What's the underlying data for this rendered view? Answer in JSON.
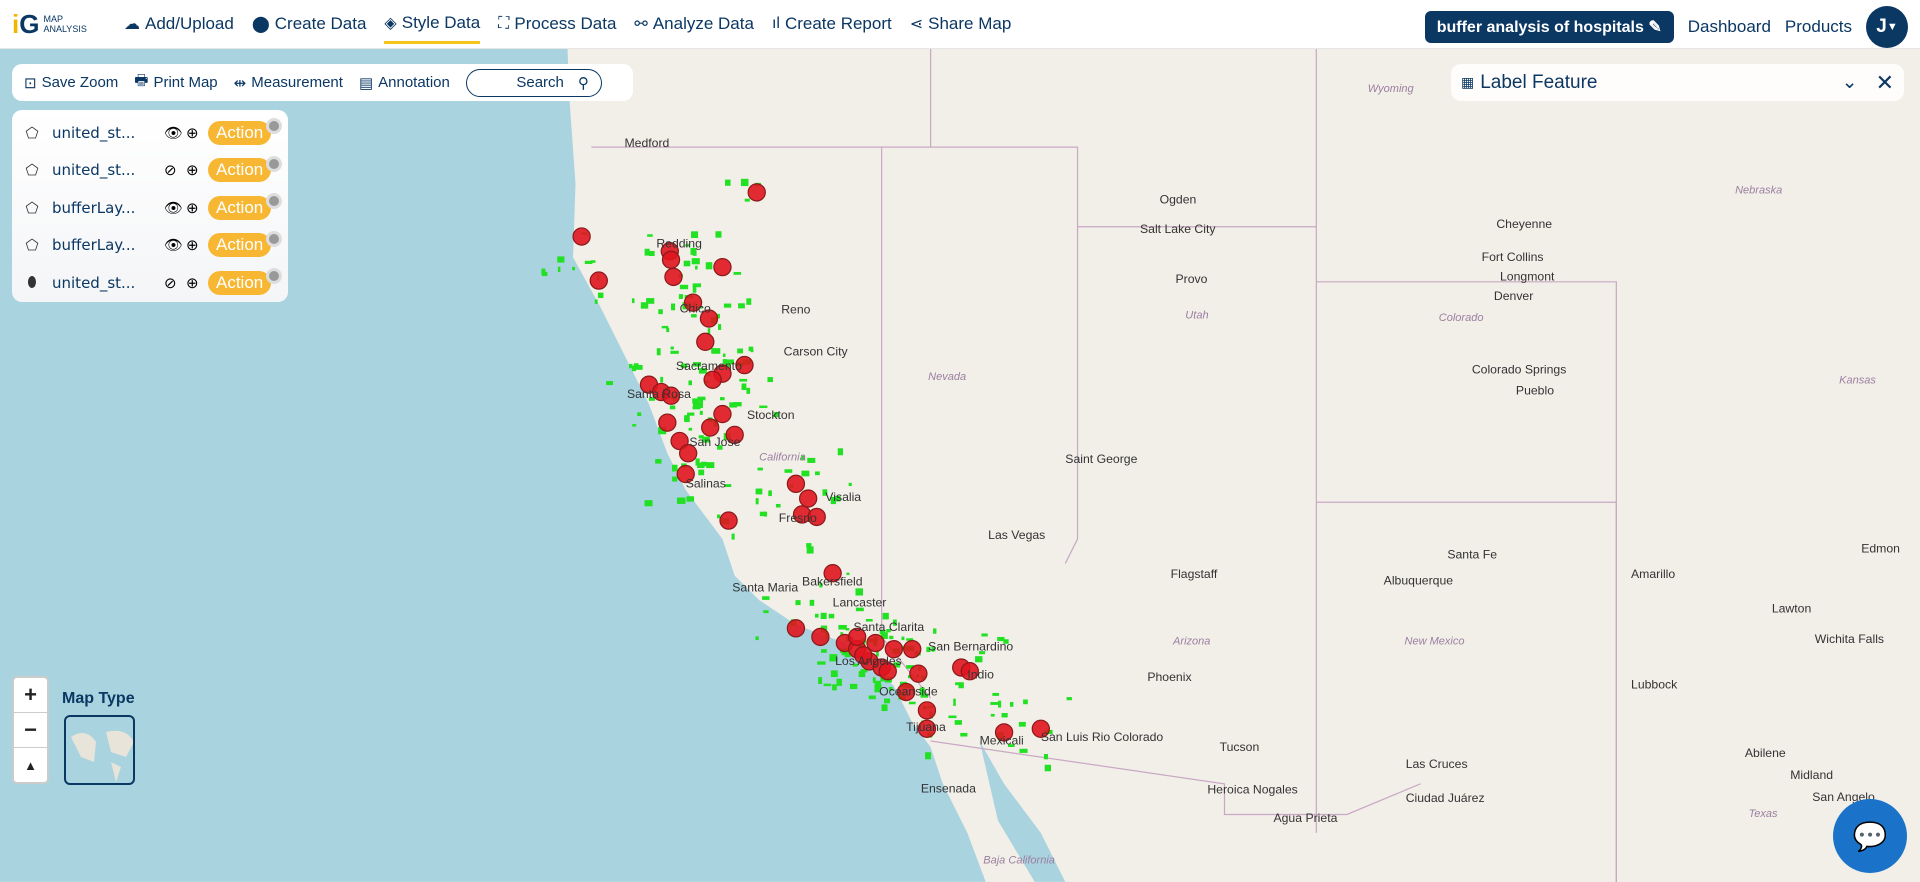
{
  "header": {
    "logo_mark": "iG",
    "logo_text": [
      "MAP",
      "ANALYSIS"
    ],
    "nav": [
      {
        "label": "Add/Upload",
        "icon": "cloud-upload-icon"
      },
      {
        "label": "Create Data",
        "icon": "map-pin-icon"
      },
      {
        "label": "Style Data",
        "icon": "paint-bucket-icon",
        "active": true
      },
      {
        "label": "Process Data",
        "icon": "process-icon"
      },
      {
        "label": "Analyze Data",
        "icon": "analyze-icon"
      },
      {
        "label": "Create Report",
        "icon": "bar-chart-icon"
      },
      {
        "label": "Share Map",
        "icon": "share-icon"
      }
    ],
    "project": "buffer analysis of hospitals",
    "dashboard": "Dashboard",
    "products": "Products",
    "avatar": "J"
  },
  "toolbar": {
    "save_zoom": "Save Zoom",
    "print_map": "Print Map",
    "measurement": "Measurement",
    "annotation": "Annotation",
    "search": "Search"
  },
  "layers": [
    {
      "name": "united_st...",
      "type": "polygon",
      "visible": true,
      "action": "Action"
    },
    {
      "name": "united_st...",
      "type": "polygon",
      "visible": false,
      "action": "Action"
    },
    {
      "name": "bufferLay...",
      "type": "polygon",
      "visible": true,
      "action": "Action"
    },
    {
      "name": "bufferLay...",
      "type": "polygon",
      "visible": true,
      "action": "Action"
    },
    {
      "name": "united_st...",
      "type": "point",
      "visible": false,
      "action": "Action"
    }
  ],
  "label_feature": {
    "title": "Label Feature"
  },
  "map_type": {
    "label": "Map Type"
  },
  "zoom": {
    "in": "+",
    "out": "−",
    "reset": "▲"
  },
  "colors": {
    "brand": "#0b3763",
    "accent": "#f5c518",
    "action": "#f7b733",
    "buffer": "#e0141e",
    "feature": "#22e022",
    "ocean": "#a9d3df",
    "land": "#f2efe9"
  },
  "places": [
    "Medford",
    "Redding",
    "Chico",
    "Reno",
    "Carson City",
    "Sacramento",
    "Santa Rosa",
    "Stockton",
    "San Jose",
    "Salinas",
    "California",
    "Fresno",
    "Visalia",
    "Bakersfield",
    "Santa Maria",
    "Lancaster",
    "Santa Clarita",
    "Los Angeles",
    "San Bernardino",
    "Indio",
    "Oceanside",
    "Tijuana",
    "Mexicali",
    "San Luis Rio Colorado",
    "Ensenada",
    "Baja California",
    "Nevada",
    "Las Vegas",
    "Saint George",
    "Utah",
    "Ogden",
    "Salt Lake City",
    "Provo",
    "Wyoming",
    "Cheyenne",
    "Fort Collins",
    "Longmont",
    "Denver",
    "Colorado",
    "Colorado Springs",
    "Pueblo",
    "Nebraska",
    "Kansas",
    "Flagstaff",
    "Arizona",
    "Phoenix",
    "Tucson",
    "Heroica Nogales",
    "Agua Prieta",
    "Albuquerque",
    "Santa Fe",
    "New Mexico",
    "Las Cruces",
    "Ciudad Juárez",
    "Amarillo",
    "Lubbock",
    "Lawton",
    "Wichita Falls",
    "Abilene",
    "Midland",
    "San Angelo",
    "Texas",
    "Edmon"
  ]
}
